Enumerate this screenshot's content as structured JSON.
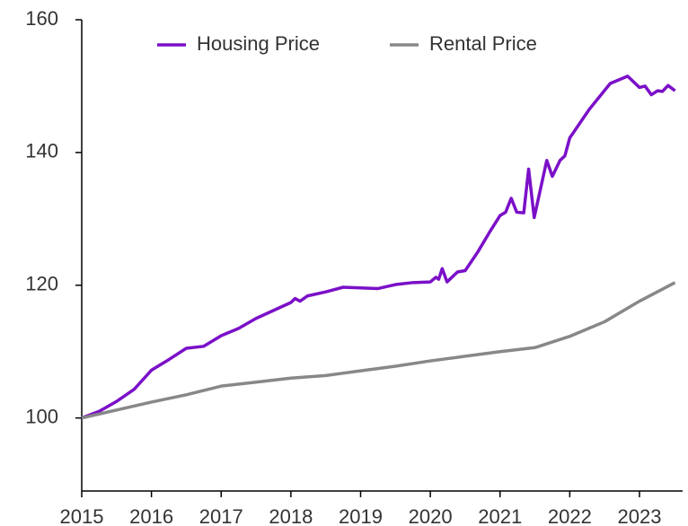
{
  "chart_data": {
    "type": "line",
    "series": [
      {
        "name": "Housing Price",
        "color": "#7b10c8",
        "x": [
          2015.0,
          2015.25,
          2015.5,
          2015.75,
          2016.0,
          2016.25,
          2016.5,
          2016.75,
          2017.0,
          2017.25,
          2017.5,
          2017.75,
          2018.0,
          2018.06,
          2018.13,
          2018.24,
          2018.5,
          2018.75,
          2019.0,
          2019.25,
          2019.5,
          2019.75,
          2020.0,
          2020.08,
          2020.12,
          2020.17,
          2020.24,
          2020.39,
          2020.5,
          2020.68,
          2020.85,
          2021.0,
          2021.08,
          2021.16,
          2021.24,
          2021.34,
          2021.41,
          2021.49,
          2021.67,
          2021.75,
          2021.86,
          2021.93,
          2022.0,
          2022.28,
          2022.58,
          2022.83,
          2023.0,
          2023.08,
          2023.17,
          2023.26,
          2023.33,
          2023.41,
          2023.51
        ],
        "values": [
          100,
          101,
          102.5,
          104.3,
          107.2,
          108.8,
          110.5,
          110.8,
          112.4,
          113.5,
          115,
          116.2,
          117.4,
          118,
          117.6,
          118.4,
          119,
          119.7,
          119.6,
          119.5,
          120.1,
          120.4,
          120.5,
          121.2,
          120.9,
          122.5,
          120.5,
          122,
          122.2,
          125,
          128,
          130.5,
          131,
          133.1,
          131,
          130.9,
          137.5,
          130.2,
          138.8,
          136.4,
          138.8,
          139.5,
          142.2,
          146.5,
          150.4,
          151.5,
          149.8,
          150,
          148.7,
          149.3,
          149.2,
          150.1,
          149.3
        ]
      },
      {
        "name": "Rental Price",
        "color": "#888888",
        "x": [
          2015.0,
          2015.5,
          2016.0,
          2016.5,
          2017.0,
          2017.5,
          2018.0,
          2018.5,
          2019.0,
          2019.5,
          2020.0,
          2020.5,
          2021.0,
          2021.5,
          2022.0,
          2022.5,
          2023.0,
          2023.51
        ],
        "values": [
          100,
          101.2,
          102.4,
          103.5,
          104.8,
          105.4,
          106,
          106.4,
          107.1,
          107.8,
          108.6,
          109.3,
          110,
          110.6,
          112.3,
          114.5,
          117.6,
          120.4
        ]
      }
    ],
    "xlim": [
      2015,
      2023.58
    ],
    "xticks": [
      2015,
      2016,
      2017,
      2018,
      2019,
      2020,
      2021,
      2022,
      2023
    ],
    "ylim": [
      89,
      160
    ],
    "yticks": [
      100,
      120,
      140,
      160
    ],
    "grid": false,
    "legend": "upper center"
  }
}
